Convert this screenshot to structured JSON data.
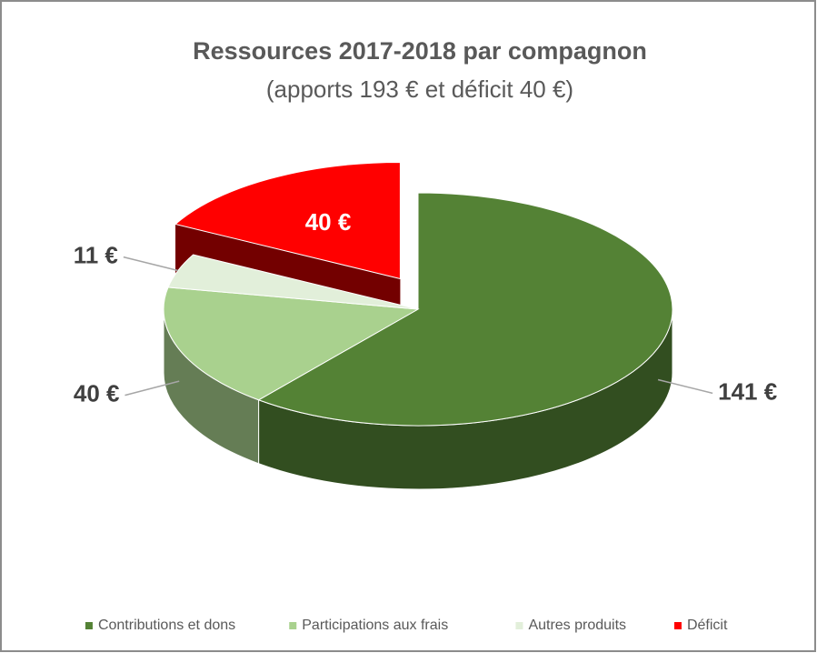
{
  "chart_data": {
    "type": "pie",
    "title": "Ressources 2017-2018 par compagnon",
    "subtitle": "(apports 193 € et déficit 40 €)",
    "categories": [
      "Contributions et dons",
      "Participations aux frais",
      "Autres produits",
      "Déficit"
    ],
    "values": [
      141,
      40,
      11,
      40
    ],
    "value_labels": [
      "141 €",
      "40 €",
      "11 €",
      "40 €"
    ],
    "colors": [
      "#548235",
      "#a9d18e",
      "#e2efda",
      "#ff0000"
    ],
    "legend": "bottom"
  }
}
